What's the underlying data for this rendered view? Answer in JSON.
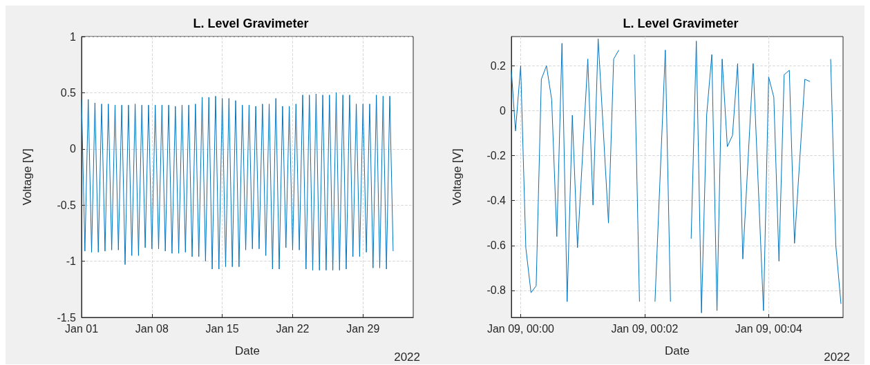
{
  "chart_data": [
    {
      "type": "line",
      "title": "L. Level Gravimeter",
      "xlabel": "Date",
      "ylabel": "Voltage [V]",
      "annotations": [
        "2022"
      ],
      "grid": true,
      "xlim": [
        "2022-01-01",
        "2022-02-03"
      ],
      "xticks": [
        {
          "value": "2022-01-01",
          "label": "Jan 01"
        },
        {
          "value": "2022-01-08",
          "label": "Jan 08"
        },
        {
          "value": "2022-01-15",
          "label": "Jan 15"
        },
        {
          "value": "2022-01-22",
          "label": "Jan 22"
        },
        {
          "value": "2022-01-29",
          "label": "Jan 29"
        }
      ],
      "ylim": [
        -1.5,
        1
      ],
      "yticks": [
        -1.5,
        -1,
        -0.5,
        0,
        0.5,
        1
      ],
      "series": [
        {
          "color": "#0072bd",
          "x": [
            "2022-01-01T00:00",
            "2022-01-01T08:00",
            "2022-01-01T16:00",
            "2022-01-02T00:00",
            "2022-01-02T08:00",
            "2022-01-02T16:00",
            "2022-01-03T00:00",
            "2022-01-03T08:00",
            "2022-01-03T16:00",
            "2022-01-04T00:00",
            "2022-01-04T08:00",
            "2022-01-04T16:00",
            "2022-01-05T00:00",
            "2022-01-05T08:00",
            "2022-01-05T16:00",
            "2022-01-06T00:00",
            "2022-01-06T08:00",
            "2022-01-06T16:00",
            "2022-01-07T00:00",
            "2022-01-07T08:00",
            "2022-01-07T16:00",
            "2022-01-08T00:00",
            "2022-01-08T08:00",
            "2022-01-08T16:00",
            "2022-01-09T00:00",
            "2022-01-09T08:00",
            "2022-01-09T16:00",
            "2022-01-10T00:00",
            "2022-01-10T08:00",
            "2022-01-10T16:00",
            "2022-01-11T00:00",
            "2022-01-11T08:00",
            "2022-01-11T16:00",
            "2022-01-12T00:00",
            "2022-01-12T08:00",
            "2022-01-12T16:00",
            "2022-01-13T00:00",
            "2022-01-13T08:00",
            "2022-01-13T16:00",
            "2022-01-14T00:00",
            "2022-01-14T08:00",
            "2022-01-14T16:00",
            "2022-01-15T00:00",
            "2022-01-15T08:00",
            "2022-01-15T16:00",
            "2022-01-16T00:00",
            "2022-01-16T08:00",
            "2022-01-16T16:00",
            "2022-01-17T00:00",
            "2022-01-17T08:00",
            "2022-01-17T16:00",
            "2022-01-18T00:00",
            "2022-01-18T08:00",
            "2022-01-18T16:00",
            "2022-01-19T00:00",
            "2022-01-19T08:00",
            "2022-01-19T16:00",
            "2022-01-20T00:00",
            "2022-01-20T08:00",
            "2022-01-20T16:00",
            "2022-01-21T00:00",
            "2022-01-21T08:00",
            "2022-01-21T16:00",
            "2022-01-22T00:00",
            "2022-01-22T08:00",
            "2022-01-22T16:00",
            "2022-01-23T00:00",
            "2022-01-23T08:00",
            "2022-01-23T16:00",
            "2022-01-24T00:00",
            "2022-01-24T08:00",
            "2022-01-24T16:00",
            "2022-01-25T00:00",
            "2022-01-25T08:00",
            "2022-01-25T16:00",
            "2022-01-26T00:00",
            "2022-01-26T08:00",
            "2022-01-26T16:00",
            "2022-01-27T00:00",
            "2022-01-27T08:00",
            "2022-01-27T16:00",
            "2022-01-28T00:00",
            "2022-01-28T08:00",
            "2022-01-28T16:00",
            "2022-01-29T00:00",
            "2022-01-29T08:00",
            "2022-01-29T16:00",
            "2022-01-30T00:00",
            "2022-01-30T08:00",
            "2022-01-30T16:00",
            "2022-01-31T00:00",
            "2022-01-31T08:00",
            "2022-01-31T16:00",
            "2022-02-01T00:00"
          ],
          "values": [
            0.44,
            -0.91,
            0.44,
            -0.92,
            0.41,
            -0.92,
            0.4,
            -0.91,
            0.4,
            -0.9,
            0.39,
            -0.9,
            0.39,
            -1.03,
            0.39,
            -0.95,
            0.4,
            -0.95,
            0.39,
            -0.88,
            0.39,
            -0.89,
            0.39,
            -0.89,
            0.39,
            -0.91,
            0.39,
            -0.93,
            0.38,
            -0.93,
            0.39,
            -0.92,
            0.39,
            -0.96,
            0.4,
            -0.96,
            0.46,
            -1.0,
            0.46,
            -1.07,
            0.47,
            -1.07,
            0.45,
            -1.05,
            0.45,
            -1.05,
            0.43,
            -1.05,
            0.39,
            -0.9,
            0.39,
            -0.89,
            0.38,
            -0.89,
            0.4,
            -0.95,
            0.4,
            -1.07,
            0.45,
            -1.07,
            0.38,
            -0.88,
            0.38,
            -0.9,
            0.4,
            -0.9,
            0.48,
            -1.07,
            0.48,
            -1.08,
            0.49,
            -1.08,
            0.48,
            -1.08,
            0.48,
            -1.08,
            0.5,
            -1.08,
            0.48,
            -1.07,
            0.48,
            -0.96,
            0.4,
            -0.96,
            0.4,
            -0.92,
            0.4,
            -1.06,
            0.48,
            -1.06,
            0.47,
            -1.07,
            0.47,
            -0.91
          ]
        }
      ]
    },
    {
      "type": "line",
      "title": "L. Level Gravimeter",
      "xlabel": "Date",
      "ylabel": "Voltage [V]",
      "annotations": [
        "2022"
      ],
      "grid": true,
      "xlim": [
        "2022-01-08T23:59:51",
        "2022-01-09T00:05:12"
      ],
      "xticks": [
        {
          "value": "2022-01-09T00:00",
          "label": "Jan 09, 00:00"
        },
        {
          "value": "2022-01-09T00:02",
          "label": "Jan 09, 00:02"
        },
        {
          "value": "2022-01-09T00:04",
          "label": "Jan 09, 00:04"
        }
      ],
      "ylim": [
        -0.92,
        0.33
      ],
      "yticks": [
        -0.8,
        -0.6,
        -0.4,
        -0.2,
        0,
        0.2
      ],
      "series": [
        {
          "color": "#0072bd",
          "x": [
            "2022-01-08T23:59:51",
            "2022-01-08T23:59:55",
            "2022-01-09T00:00:00",
            "2022-01-09T00:00:05",
            "2022-01-09T00:00:10",
            "2022-01-09T00:00:15",
            "2022-01-09T00:00:20",
            "2022-01-09T00:00:25",
            "2022-01-09T00:00:30",
            "2022-01-09T00:00:35",
            "2022-01-09T00:00:40",
            "2022-01-09T00:00:45",
            "2022-01-09T00:00:50",
            "2022-01-09T00:00:55",
            "2022-01-09T00:01:05",
            "2022-01-09T00:01:10",
            "2022-01-09T00:01:15",
            "2022-01-09T00:01:25",
            "2022-01-09T00:01:30",
            "2022-01-09T00:01:35",
            "2022-01-09T00:01:40",
            "2022-01-09T00:01:50",
            "2022-01-09T00:01:55",
            "2022-01-09T00:02:05",
            "2022-01-09T00:02:10",
            "2022-01-09T00:02:20",
            "2022-01-09T00:02:25",
            "2022-01-09T00:02:35",
            "2022-01-09T00:02:45",
            "2022-01-09T00:02:50",
            "2022-01-09T00:02:55",
            "2022-01-09T00:03:00",
            "2022-01-09T00:03:05",
            "2022-01-09T00:03:10",
            "2022-01-09T00:03:15",
            "2022-01-09T00:03:20",
            "2022-01-09T00:03:25",
            "2022-01-09T00:03:30",
            "2022-01-09T00:03:35",
            "2022-01-09T00:03:45",
            "2022-01-09T00:03:55",
            "2022-01-09T00:04:00",
            "2022-01-09T00:04:05",
            "2022-01-09T00:04:10",
            "2022-01-09T00:04:15",
            "2022-01-09T00:04:20",
            "2022-01-09T00:04:25",
            "2022-01-09T00:04:35",
            "2022-01-09T00:04:40",
            "2022-01-09T00:04:45",
            "2022-01-09T00:05:00",
            "2022-01-09T00:05:05",
            "2022-01-09T00:05:10"
          ],
          "values": [
            0.18,
            -0.09,
            0.2,
            -0.61,
            -0.81,
            -0.78,
            0.14,
            0.2,
            0.05,
            -0.56,
            0.3,
            -0.85,
            -0.02,
            -0.61,
            0.23,
            -0.42,
            0.32,
            -0.5,
            0.23,
            0.27,
            null,
            0.25,
            -0.85,
            null,
            -0.85,
            0.27,
            -0.85,
            null,
            -0.57,
            0.31,
            -0.9,
            -0.02,
            0.25,
            -0.89,
            0.23,
            -0.16,
            -0.11,
            0.21,
            -0.66,
            0.21,
            -0.89,
            0.15,
            0.06,
            -0.67,
            0.16,
            0.18,
            -0.59,
            0.14,
            0.13,
            null,
            0.23,
            -0.6,
            -0.86
          ]
        }
      ]
    }
  ]
}
